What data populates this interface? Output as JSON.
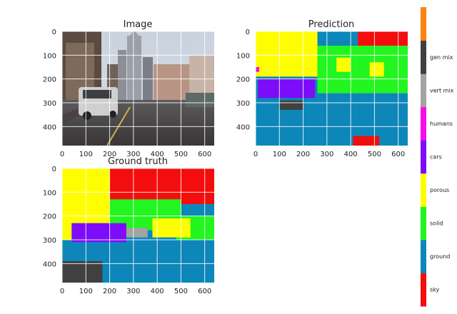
{
  "panels": [
    {
      "id": "image",
      "title": "Image"
    },
    {
      "id": "prediction",
      "title": "Prediction"
    },
    {
      "id": "ground_truth",
      "title": "Ground truth"
    }
  ],
  "chart_data": {
    "type": "heatmap",
    "x_ticks": [
      0,
      100,
      200,
      300,
      400,
      500,
      600
    ],
    "y_ticks": [
      0,
      100,
      200,
      300,
      400
    ],
    "xlim": [
      0,
      640
    ],
    "ylim": [
      480,
      0
    ],
    "grid": true,
    "colorbar": {
      "classes": [
        {
          "name": "sky",
          "color": "#f40d0d"
        },
        {
          "name": "ground",
          "color": "#0d87ba"
        },
        {
          "name": "solid",
          "color": "#22f51f"
        },
        {
          "name": "porous",
          "color": "#fffe00"
        },
        {
          "name": "cars",
          "color": "#7d0cfa"
        },
        {
          "name": "humans",
          "color": "#f80de6"
        },
        {
          "name": "vert mix",
          "color": "#a3a3a3"
        },
        {
          "name": "gen mix",
          "color": "#404040"
        },
        {
          "name": "",
          "color": "#fb8314"
        }
      ]
    },
    "segments": {
      "prediction": [
        {
          "cls": "ground",
          "x": 0,
          "y": 270,
          "w": 640,
          "h": 210
        },
        {
          "cls": "porous",
          "x": 0,
          "y": 0,
          "w": 260,
          "h": 190
        },
        {
          "cls": "sky",
          "x": 430,
          "y": 0,
          "w": 210,
          "h": 90
        },
        {
          "cls": "solid",
          "x": 260,
          "y": 60,
          "w": 380,
          "h": 200
        },
        {
          "cls": "porous",
          "x": 340,
          "y": 110,
          "w": 60,
          "h": 60
        },
        {
          "cls": "porous",
          "x": 480,
          "y": 130,
          "w": 60,
          "h": 60
        },
        {
          "cls": "cars",
          "x": 10,
          "y": 200,
          "w": 240,
          "h": 80
        },
        {
          "cls": "gen mix",
          "x": 100,
          "y": 290,
          "w": 100,
          "h": 40
        },
        {
          "cls": "sky",
          "x": 410,
          "y": 440,
          "w": 110,
          "h": 40
        },
        {
          "cls": "humans",
          "x": 0,
          "y": 150,
          "w": 15,
          "h": 20
        }
      ],
      "ground_truth": [
        {
          "cls": "ground",
          "x": 0,
          "y": 300,
          "w": 640,
          "h": 180
        },
        {
          "cls": "porous",
          "x": 0,
          "y": 0,
          "w": 200,
          "h": 300
        },
        {
          "cls": "sky",
          "x": 200,
          "y": 0,
          "w": 440,
          "h": 150
        },
        {
          "cls": "solid",
          "x": 200,
          "y": 130,
          "w": 300,
          "h": 130
        },
        {
          "cls": "solid",
          "x": 480,
          "y": 200,
          "w": 160,
          "h": 100
        },
        {
          "cls": "porous",
          "x": 380,
          "y": 210,
          "w": 160,
          "h": 80
        },
        {
          "cls": "vert mix",
          "x": 240,
          "y": 250,
          "w": 120,
          "h": 40
        },
        {
          "cls": "cars",
          "x": 40,
          "y": 230,
          "w": 230,
          "h": 80
        },
        {
          "cls": "gen mix",
          "x": 0,
          "y": 390,
          "w": 170,
          "h": 90
        }
      ]
    }
  }
}
